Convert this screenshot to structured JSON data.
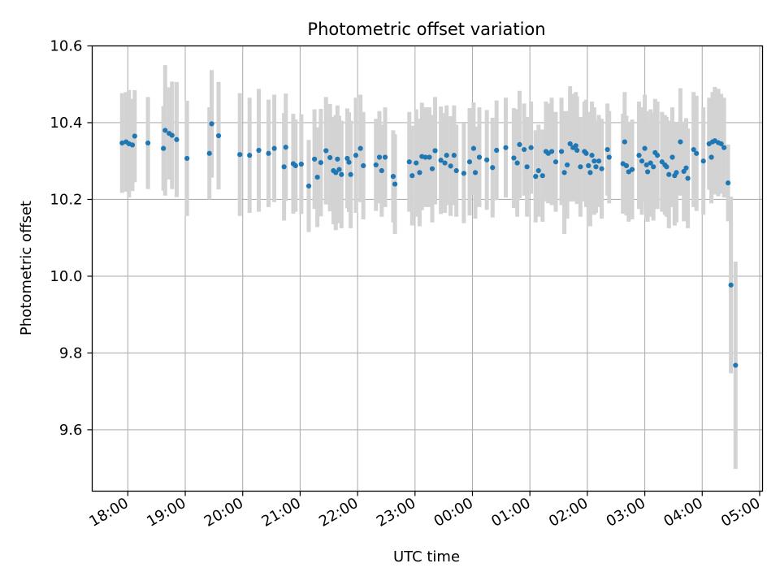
{
  "chart_data": {
    "type": "scatter",
    "title": "Photometric offset variation",
    "xlabel": "UTC time",
    "ylabel": "Photometric offset",
    "grid": true,
    "x_unit": "hours since 18:00 UTC",
    "xlim": [
      -0.62,
      11.05
    ],
    "ylim": [
      9.44,
      10.6
    ],
    "x_ticks": [
      {
        "value": 0,
        "label": "18:00"
      },
      {
        "value": 1,
        "label": "19:00"
      },
      {
        "value": 2,
        "label": "20:00"
      },
      {
        "value": 3,
        "label": "21:00"
      },
      {
        "value": 4,
        "label": "22:00"
      },
      {
        "value": 5,
        "label": "23:00"
      },
      {
        "value": 6,
        "label": "00:00"
      },
      {
        "value": 7,
        "label": "01:00"
      },
      {
        "value": 8,
        "label": "02:00"
      },
      {
        "value": 9,
        "label": "03:00"
      },
      {
        "value": 10,
        "label": "04:00"
      },
      {
        "value": 11,
        "label": "05:00"
      }
    ],
    "y_ticks": [
      {
        "value": 9.6,
        "label": "9.6"
      },
      {
        "value": 9.8,
        "label": "9.8"
      },
      {
        "value": 10.0,
        "label": "10.0"
      },
      {
        "value": 10.2,
        "label": "10.2"
      },
      {
        "value": 10.4,
        "label": "10.4"
      },
      {
        "value": 10.6,
        "label": "10.6"
      }
    ],
    "marker_color": "#1f77b4",
    "errorbar_color": "#d3d3d3",
    "points": [
      [
        -0.1,
        10.347,
        0.13
      ],
      [
        -0.03,
        10.35,
        0.13
      ],
      [
        0.02,
        10.345,
        0.14
      ],
      [
        0.08,
        10.342,
        0.12
      ],
      [
        0.12,
        10.365,
        0.12
      ],
      [
        0.35,
        10.347,
        0.12
      ],
      [
        0.62,
        10.333,
        0.11
      ],
      [
        0.65,
        10.38,
        0.17
      ],
      [
        0.72,
        10.372,
        0.12
      ],
      [
        0.77,
        10.367,
        0.14
      ],
      [
        0.85,
        10.356,
        0.15
      ],
      [
        1.03,
        10.307,
        0.15
      ],
      [
        1.42,
        10.32,
        0.12
      ],
      [
        1.46,
        10.397,
        0.14
      ],
      [
        1.58,
        10.366,
        0.14
      ],
      [
        1.95,
        10.317,
        0.16
      ],
      [
        2.12,
        10.315,
        0.15
      ],
      [
        2.28,
        10.328,
        0.16
      ],
      [
        2.45,
        10.32,
        0.14
      ],
      [
        2.55,
        10.333,
        0.14
      ],
      [
        2.72,
        10.285,
        0.14
      ],
      [
        2.75,
        10.336,
        0.14
      ],
      [
        2.88,
        10.293,
        0.13
      ],
      [
        2.92,
        10.288,
        0.12
      ],
      [
        3.02,
        10.292,
        0.13
      ],
      [
        3.15,
        10.235,
        0.12
      ],
      [
        3.25,
        10.305,
        0.13
      ],
      [
        3.3,
        10.258,
        0.13
      ],
      [
        3.36,
        10.296,
        0.14
      ],
      [
        3.45,
        10.327,
        0.14
      ],
      [
        3.52,
        10.309,
        0.14
      ],
      [
        3.58,
        10.275,
        0.14
      ],
      [
        3.62,
        10.27,
        0.15
      ],
      [
        3.65,
        10.305,
        0.14
      ],
      [
        3.68,
        10.278,
        0.14
      ],
      [
        3.72,
        10.265,
        0.14
      ],
      [
        3.82,
        10.307,
        0.13
      ],
      [
        3.85,
        10.297,
        0.13
      ],
      [
        3.88,
        10.265,
        0.14
      ],
      [
        3.97,
        10.315,
        0.15
      ],
      [
        4.05,
        10.333,
        0.14
      ],
      [
        4.1,
        10.288,
        0.14
      ],
      [
        4.32,
        10.29,
        0.12
      ],
      [
        4.38,
        10.31,
        0.12
      ],
      [
        4.42,
        10.275,
        0.12
      ],
      [
        4.48,
        10.31,
        0.13
      ],
      [
        4.65,
        10.24,
        0.13
      ],
      [
        4.62,
        10.26,
        0.12
      ],
      [
        4.9,
        10.298,
        0.13
      ],
      [
        4.95,
        10.262,
        0.13
      ],
      [
        5.02,
        10.295,
        0.14
      ],
      [
        5.08,
        10.27,
        0.14
      ],
      [
        5.12,
        10.312,
        0.14
      ],
      [
        5.18,
        10.31,
        0.13
      ],
      [
        5.25,
        10.31,
        0.13
      ],
      [
        5.3,
        10.28,
        0.14
      ],
      [
        5.35,
        10.327,
        0.14
      ],
      [
        5.45,
        10.302,
        0.14
      ],
      [
        5.52,
        10.295,
        0.13
      ],
      [
        5.55,
        10.315,
        0.13
      ],
      [
        5.62,
        10.287,
        0.13
      ],
      [
        5.68,
        10.315,
        0.13
      ],
      [
        5.72,
        10.275,
        0.12
      ],
      [
        5.85,
        10.268,
        0.13
      ],
      [
        5.95,
        10.298,
        0.14
      ],
      [
        6.02,
        10.333,
        0.12
      ],
      [
        6.05,
        10.27,
        0.12
      ],
      [
        6.12,
        10.31,
        0.13
      ],
      [
        6.25,
        10.303,
        0.13
      ],
      [
        6.35,
        10.283,
        0.13
      ],
      [
        6.42,
        10.328,
        0.13
      ],
      [
        6.58,
        10.335,
        0.13
      ],
      [
        6.72,
        10.308,
        0.13
      ],
      [
        6.78,
        10.295,
        0.14
      ],
      [
        6.82,
        10.343,
        0.14
      ],
      [
        6.9,
        10.33,
        0.12
      ],
      [
        6.95,
        10.285,
        0.13
      ],
      [
        7.02,
        10.335,
        0.12
      ],
      [
        7.1,
        10.26,
        0.12
      ],
      [
        7.15,
        10.275,
        0.12
      ],
      [
        7.22,
        10.262,
        0.12
      ],
      [
        7.28,
        10.325,
        0.13
      ],
      [
        7.32,
        10.32,
        0.13
      ],
      [
        7.38,
        10.325,
        0.14
      ],
      [
        7.45,
        10.298,
        0.13
      ],
      [
        7.55,
        10.325,
        0.14
      ],
      [
        7.6,
        10.27,
        0.16
      ],
      [
        7.65,
        10.29,
        0.14
      ],
      [
        7.7,
        10.345,
        0.15
      ],
      [
        7.75,
        10.335,
        0.14
      ],
      [
        7.8,
        10.34,
        0.14
      ],
      [
        7.82,
        10.328,
        0.14
      ],
      [
        7.88,
        10.285,
        0.13
      ],
      [
        7.95,
        10.325,
        0.13
      ],
      [
        7.98,
        10.32,
        0.14
      ],
      [
        8.02,
        10.288,
        0.14
      ],
      [
        8.05,
        10.27,
        0.14
      ],
      [
        8.08,
        10.315,
        0.14
      ],
      [
        8.12,
        10.3,
        0.14
      ],
      [
        8.15,
        10.285,
        0.12
      ],
      [
        8.2,
        10.3,
        0.12
      ],
      [
        8.25,
        10.28,
        0.13
      ],
      [
        8.35,
        10.33,
        0.12
      ],
      [
        8.38,
        10.31,
        0.12
      ],
      [
        8.62,
        10.293,
        0.13
      ],
      [
        8.65,
        10.35,
        0.13
      ],
      [
        8.68,
        10.288,
        0.13
      ],
      [
        8.72,
        10.272,
        0.13
      ],
      [
        8.78,
        10.278,
        0.13
      ],
      [
        8.9,
        10.315,
        0.14
      ],
      [
        8.95,
        10.3,
        0.14
      ],
      [
        9.0,
        10.333,
        0.14
      ],
      [
        9.03,
        10.29,
        0.14
      ],
      [
        9.05,
        10.272,
        0.13
      ],
      [
        9.1,
        10.295,
        0.14
      ],
      [
        9.15,
        10.285,
        0.14
      ],
      [
        9.18,
        10.322,
        0.14
      ],
      [
        9.22,
        10.315,
        0.14
      ],
      [
        9.3,
        10.298,
        0.13
      ],
      [
        9.35,
        10.29,
        0.13
      ],
      [
        9.38,
        10.285,
        0.13
      ],
      [
        9.42,
        10.265,
        0.14
      ],
      [
        9.48,
        10.31,
        0.13
      ],
      [
        9.52,
        10.262,
        0.13
      ],
      [
        9.55,
        10.27,
        0.13
      ],
      [
        9.62,
        10.35,
        0.14
      ],
      [
        9.68,
        10.273,
        0.13
      ],
      [
        9.72,
        10.282,
        0.13
      ],
      [
        9.75,
        10.255,
        0.13
      ],
      [
        9.85,
        10.33,
        0.15
      ],
      [
        9.9,
        10.32,
        0.15
      ],
      [
        10.02,
        10.3,
        0.14
      ],
      [
        10.12,
        10.345,
        0.12
      ],
      [
        10.16,
        10.31,
        0.12
      ],
      [
        10.18,
        10.35,
        0.13
      ],
      [
        10.22,
        10.353,
        0.14
      ],
      [
        10.28,
        10.348,
        0.14
      ],
      [
        10.33,
        10.345,
        0.13
      ],
      [
        10.38,
        10.335,
        0.13
      ],
      [
        10.45,
        10.243,
        0.1
      ],
      [
        10.5,
        9.977,
        0.23
      ],
      [
        10.58,
        9.768,
        0.27
      ]
    ]
  }
}
